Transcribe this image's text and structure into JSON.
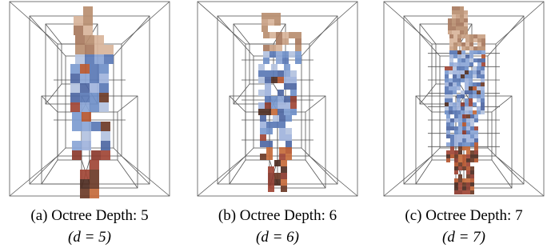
{
  "figure": {
    "panels": [
      {
        "caption": "(a) Octree Depth: 5",
        "subcaption": "(d = 5)"
      },
      {
        "caption": "(b) Octree Depth: 6",
        "subcaption": "(d = 6)"
      },
      {
        "caption": "(c) Octree Depth: 7",
        "subcaption": "(d = 7)"
      }
    ]
  }
}
